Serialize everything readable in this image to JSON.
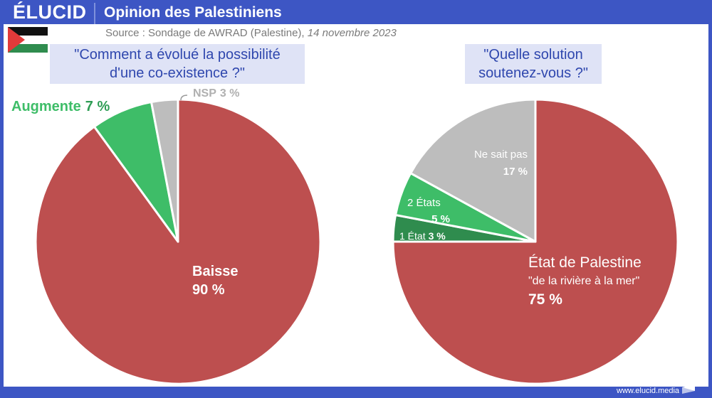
{
  "header": {
    "logo": "ÉLUCID",
    "title": "Opinion des Palestiniens"
  },
  "source": {
    "prefix": "Source : Sondage de AWRAD (Palestine), ",
    "date": "14 novembre 2023"
  },
  "flag_icon": "palestine-flag-icon",
  "colors": {
    "brand_blue": "#3d56c4",
    "red": "#bd4f4f",
    "green": "#3ebd68",
    "dark_green": "#2f8c4e",
    "grey": "#bdbdbd",
    "question_bg": "#dfe3f6",
    "question_text": "#2f47ae"
  },
  "chart_data": [
    {
      "type": "pie",
      "title": "\"Comment a évolué  la possibilité d'une co-existence ?\"",
      "title_lines": [
        "\"Comment a évolué  la possibilité",
        "d'une co-existence ?\""
      ],
      "start": "12 o'clock, clockwise",
      "slices": [
        {
          "label": "Baisse",
          "value": 90,
          "display": "90 %",
          "color": "#bd4f4f"
        },
        {
          "label": "Augmente",
          "value": 7,
          "display": "7 %",
          "color": "#3ebd68"
        },
        {
          "label": "NSP",
          "value": 3,
          "display": "3 %",
          "color": "#bdbdbd"
        }
      ]
    },
    {
      "type": "pie",
      "title": "\"Quelle solution soutenez-vous ?\"",
      "title_lines": [
        "\"Quelle solution",
        "soutenez-vous ?\""
      ],
      "start": "12 o'clock, clockwise",
      "slices": [
        {
          "label": "État de Palestine",
          "sublabel": "\"de la rivière à la mer\"",
          "value": 75,
          "display": "75 %",
          "color": "#bd4f4f"
        },
        {
          "label": "1 État",
          "value": 3,
          "display": "3 %",
          "color": "#2f8c4e"
        },
        {
          "label": "2 États",
          "value": 5,
          "display": "5 %",
          "color": "#3ebd68"
        },
        {
          "label": "Ne sait pas",
          "value": 17,
          "display": "17 %",
          "color": "#bdbdbd"
        }
      ]
    }
  ],
  "footer": {
    "url": "www.elucid.media"
  }
}
